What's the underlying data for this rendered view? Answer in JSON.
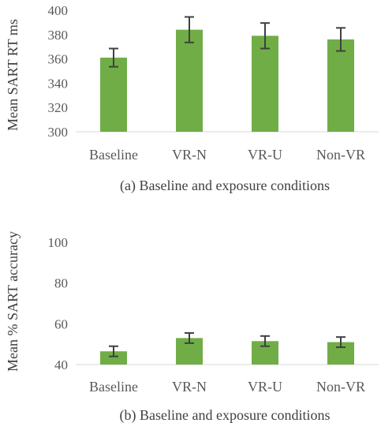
{
  "colors": {
    "bar": "#70ad47",
    "error": "#404040",
    "axis": "#d9d9d9",
    "text": "#595959"
  },
  "chart_data": [
    {
      "type": "bar",
      "categories": [
        "Baseline",
        "VR-N",
        "VR-U",
        "Non-VR"
      ],
      "values": [
        361,
        384,
        379,
        376
      ],
      "error": [
        7.5,
        10.5,
        10.5,
        9.5
      ],
      "xlabel": "(a) Baseline and exposure conditions",
      "ylabel": "Mean SART RT ms",
      "ylim": [
        300,
        400
      ],
      "yticks": [
        300,
        320,
        340,
        360,
        380,
        400
      ],
      "grid": false
    },
    {
      "type": "bar",
      "categories": [
        "Baseline",
        "VR-N",
        "VR-U",
        "Non-VR"
      ],
      "values": [
        46.5,
        53,
        51.5,
        51
      ],
      "error": [
        2.5,
        2.5,
        2.5,
        2.5
      ],
      "xlabel": "(b) Baseline and exposure conditions",
      "ylabel": "Mean % SART accuracy",
      "ylim": [
        40,
        100
      ],
      "yticks": [
        40,
        60,
        80,
        100
      ],
      "grid": false
    }
  ]
}
